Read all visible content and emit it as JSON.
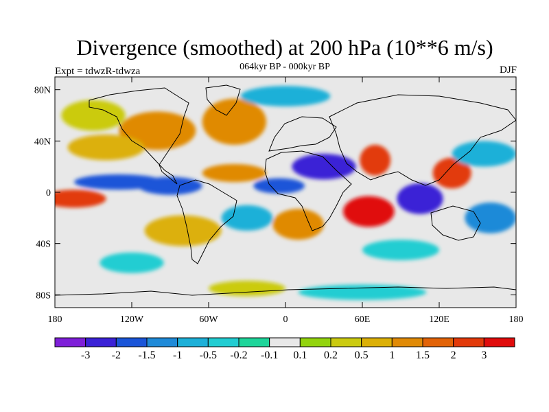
{
  "chart_data": {
    "type": "heatmap",
    "title": "Divergence (smoothed) at 200 hPa (10**6 m/s)",
    "subtitle": "064kyr BP - 000kyr BP",
    "left_label": "Expt = tdwzR-tdwza",
    "right_label": "DJF",
    "x_ticks": [
      {
        "value": -180,
        "label": "180"
      },
      {
        "value": -120,
        "label": "120W"
      },
      {
        "value": -60,
        "label": "60W"
      },
      {
        "value": 0,
        "label": "0"
      },
      {
        "value": 60,
        "label": "60E"
      },
      {
        "value": 120,
        "label": "120E"
      },
      {
        "value": 180,
        "label": "180"
      }
    ],
    "y_ticks": [
      {
        "value": 80,
        "label": "80N"
      },
      {
        "value": 40,
        "label": "40N"
      },
      {
        "value": 0,
        "label": "0"
      },
      {
        "value": -40,
        "label": "40S"
      },
      {
        "value": -80,
        "label": "80S"
      }
    ],
    "xlim": [
      -180,
      180
    ],
    "ylim": [
      -90,
      90
    ],
    "colorbar": {
      "colors": [
        "#7e1fd8",
        "#3b22d6",
        "#1a55d8",
        "#1f8ad8",
        "#1db0d8",
        "#22cdd2",
        "#1ed59a",
        "#e8e8e8",
        "#93d40e",
        "#cbcb10",
        "#dcb007",
        "#e08a06",
        "#e26307",
        "#e23a0a",
        "#e00c0c"
      ],
      "labels": [
        "-3",
        "-2",
        "-1.5",
        "-1",
        "-0.5",
        "-0.2",
        "-0.1",
        "0.1",
        "0.2",
        "0.5",
        "1",
        "1.5",
        "2",
        "3"
      ]
    },
    "field": [
      {
        "lon": -150,
        "lat": 60,
        "rx": 25,
        "ry": 12,
        "level": 9
      },
      {
        "lon": -100,
        "lat": 48,
        "rx": 30,
        "ry": 15,
        "level": 11
      },
      {
        "lon": -40,
        "lat": 55,
        "rx": 25,
        "ry": 18,
        "level": 11
      },
      {
        "lon": -140,
        "lat": 35,
        "rx": 30,
        "ry": 10,
        "level": 10
      },
      {
        "lon": -165,
        "lat": -5,
        "rx": 25,
        "ry": 7,
        "level": 13
      },
      {
        "lon": -130,
        "lat": 8,
        "rx": 35,
        "ry": 6,
        "level": 2
      },
      {
        "lon": -90,
        "lat": 5,
        "rx": 25,
        "ry": 7,
        "level": 2
      },
      {
        "lon": -40,
        "lat": 15,
        "rx": 25,
        "ry": 7,
        "level": 11
      },
      {
        "lon": -5,
        "lat": 5,
        "rx": 20,
        "ry": 6,
        "level": 2
      },
      {
        "lon": 30,
        "lat": 20,
        "rx": 25,
        "ry": 10,
        "level": 1
      },
      {
        "lon": 70,
        "lat": 25,
        "rx": 12,
        "ry": 12,
        "level": 13
      },
      {
        "lon": 65,
        "lat": -15,
        "rx": 20,
        "ry": 12,
        "level": 14
      },
      {
        "lon": 105,
        "lat": -5,
        "rx": 18,
        "ry": 12,
        "level": 1
      },
      {
        "lon": 130,
        "lat": 15,
        "rx": 15,
        "ry": 12,
        "level": 13
      },
      {
        "lon": 155,
        "lat": 30,
        "rx": 25,
        "ry": 10,
        "level": 4
      },
      {
        "lon": 160,
        "lat": -20,
        "rx": 20,
        "ry": 12,
        "level": 3
      },
      {
        "lon": -80,
        "lat": -30,
        "rx": 30,
        "ry": 12,
        "level": 10
      },
      {
        "lon": -30,
        "lat": -20,
        "rx": 20,
        "ry": 10,
        "level": 4
      },
      {
        "lon": 10,
        "lat": -25,
        "rx": 20,
        "ry": 12,
        "level": 11
      },
      {
        "lon": 90,
        "lat": -45,
        "rx": 30,
        "ry": 8,
        "level": 5
      },
      {
        "lon": -120,
        "lat": -55,
        "rx": 25,
        "ry": 8,
        "level": 5
      },
      {
        "lon": 60,
        "lat": -78,
        "rx": 50,
        "ry": 6,
        "level": 5
      },
      {
        "lon": -30,
        "lat": -75,
        "rx": 30,
        "ry": 6,
        "level": 9
      },
      {
        "lon": 0,
        "lat": 75,
        "rx": 35,
        "ry": 8,
        "level": 4
      }
    ]
  }
}
